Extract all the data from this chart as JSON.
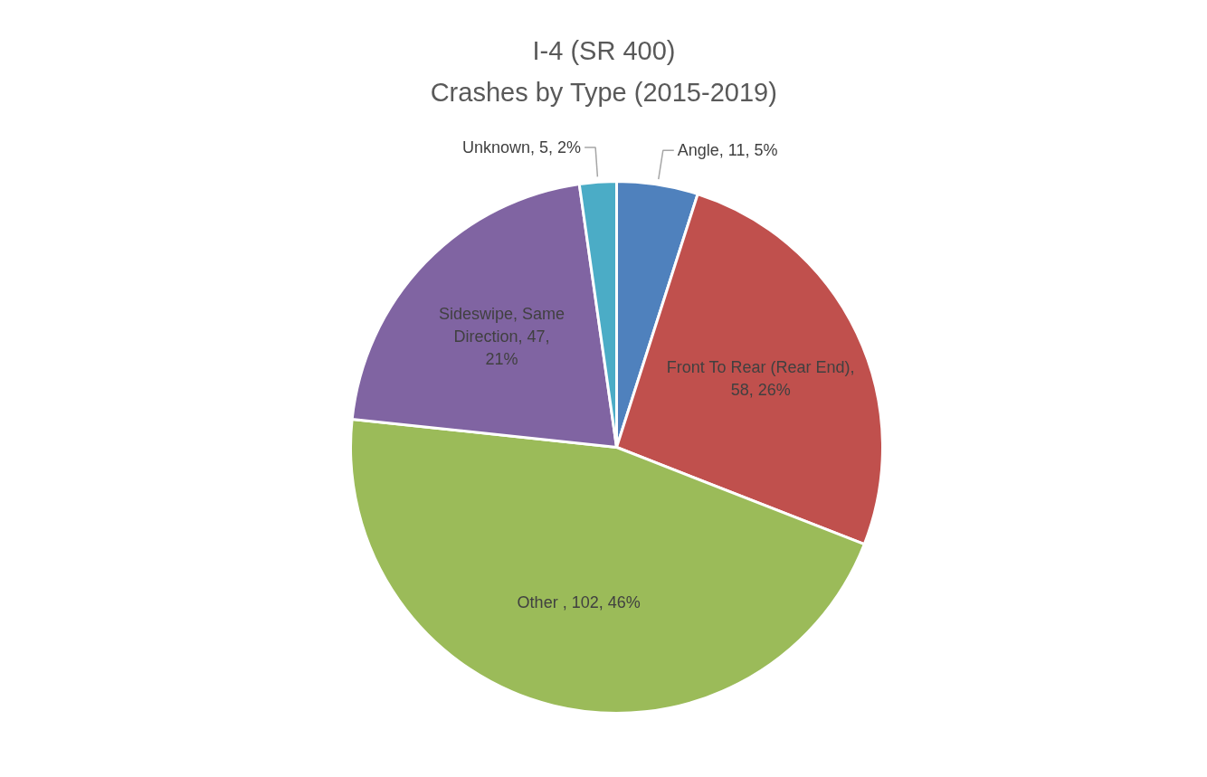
{
  "chart_data": {
    "type": "pie",
    "title": "I-4 (SR 400)",
    "subtitle": "Crashes by Type (2015-2019)",
    "categories": [
      "Angle",
      "Front To Rear (Rear End)",
      "Other ",
      "Sideswipe, Same Direction",
      "Unknown"
    ],
    "values": [
      11,
      58,
      102,
      47,
      5
    ],
    "value_labels": [
      ", 11, 5%",
      ", 58, 26%",
      ", 102, 46%",
      ", 47, 21%",
      ", 5, 2%"
    ],
    "colors": [
      "#4f81bd",
      "#c0504d",
      "#9bbb59",
      "#8064a2",
      "#4bacc6"
    ]
  }
}
